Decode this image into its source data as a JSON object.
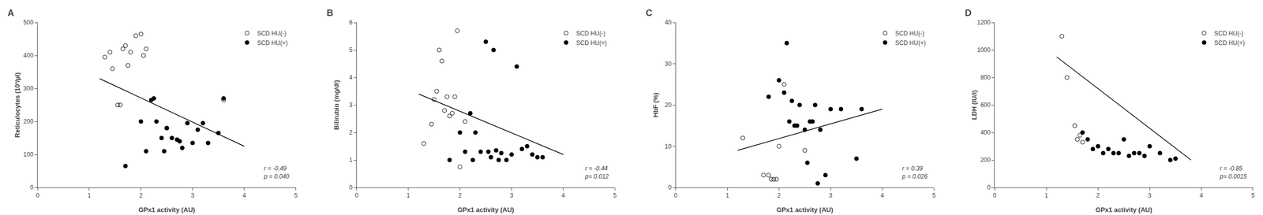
{
  "chart_data": [
    {
      "type": "scatter",
      "title": "A",
      "x_label": "GPx1 activity (AU)",
      "y_label": "Reticulocytes (10³/µl)",
      "xlim": [
        0,
        5
      ],
      "ylim": [
        0,
        500
      ],
      "xticks": [
        0,
        1,
        2,
        3,
        4,
        5
      ],
      "yticks": [
        0,
        100,
        200,
        300,
        400,
        500
      ],
      "grid": false,
      "legend": "upper right",
      "annotations": [
        "r = -0.49",
        "p = 0.040"
      ],
      "series": [
        {
          "name": "SCD HU(-)",
          "type": "scatter",
          "marker": "circle-open",
          "color": "black",
          "x": [
            1.3,
            1.4,
            1.45,
            1.55,
            1.6,
            1.65,
            1.7,
            1.75,
            1.8,
            1.9,
            2.0,
            2.05,
            2.1,
            2.5,
            3.6
          ],
          "values": [
            395,
            410,
            360,
            250,
            250,
            420,
            430,
            370,
            410,
            460,
            465,
            400,
            420,
            180,
            265
          ]
        },
        {
          "name": "SCD HU(+)",
          "type": "scatter",
          "marker": "circle",
          "color": "black",
          "x": [
            1.7,
            2.0,
            2.1,
            2.2,
            2.25,
            2.3,
            2.4,
            2.45,
            2.5,
            2.6,
            2.7,
            2.75,
            2.8,
            2.9,
            3.0,
            3.1,
            3.2,
            3.3,
            3.5,
            3.6
          ],
          "values": [
            65,
            200,
            110,
            265,
            270,
            200,
            150,
            110,
            180,
            150,
            145,
            140,
            120,
            195,
            135,
            175,
            195,
            135,
            165,
            270
          ]
        },
        {
          "type": "line",
          "color": "black",
          "x": [
            1.2,
            4.0
          ],
          "values": [
            330,
            125
          ]
        }
      ]
    },
    {
      "type": "scatter",
      "title": "B",
      "x_label": "GPx1 activity (AU)",
      "y_label": "Bilirubin (mg/dl)",
      "xlim": [
        0,
        5
      ],
      "ylim": [
        0,
        6
      ],
      "xticks": [
        0,
        1,
        2,
        3,
        4,
        5
      ],
      "yticks": [
        0,
        1,
        2,
        3,
        4,
        5,
        6
      ],
      "grid": false,
      "legend": "upper right",
      "annotations": [
        "r = -0.44",
        "p= 0.012"
      ],
      "series": [
        {
          "name": "SCD HU(-)",
          "type": "scatter",
          "marker": "circle-open",
          "color": "black",
          "x": [
            1.3,
            1.45,
            1.5,
            1.55,
            1.6,
            1.65,
            1.7,
            1.75,
            1.8,
            1.85,
            1.9,
            1.95,
            2.0,
            2.1
          ],
          "values": [
            1.6,
            2.3,
            3.2,
            3.5,
            5.0,
            4.6,
            2.8,
            3.3,
            2.6,
            2.7,
            3.3,
            5.7,
            0.75,
            2.4
          ]
        },
        {
          "name": "SCD HU(+)",
          "type": "scatter",
          "marker": "circle",
          "color": "black",
          "x": [
            1.8,
            2.0,
            2.1,
            2.2,
            2.25,
            2.3,
            2.4,
            2.5,
            2.55,
            2.6,
            2.65,
            2.7,
            2.75,
            2.8,
            2.9,
            3.0,
            3.1,
            3.2,
            3.3,
            3.4,
            3.5,
            3.6
          ],
          "values": [
            1.0,
            2.0,
            1.3,
            2.7,
            1.0,
            2.0,
            1.3,
            5.3,
            1.3,
            1.1,
            5.0,
            1.35,
            1.0,
            1.25,
            1.0,
            1.2,
            4.4,
            1.4,
            1.5,
            1.2,
            1.1,
            1.1
          ]
        },
        {
          "type": "line",
          "color": "black",
          "x": [
            1.2,
            4.0
          ],
          "values": [
            3.4,
            1.2
          ]
        }
      ]
    },
    {
      "type": "scatter",
      "title": "C",
      "x_label": "GPx1 activity (AU)",
      "y_label": "HbF (%)",
      "xlim": [
        0,
        5
      ],
      "ylim": [
        0,
        40
      ],
      "xticks": [
        0,
        1,
        2,
        3,
        4,
        5
      ],
      "yticks": [
        0,
        10,
        20,
        30,
        40
      ],
      "grid": false,
      "legend": "upper right",
      "annotations": [
        "r = 0.39",
        "p = 0.026"
      ],
      "series": [
        {
          "name": "SCD HU(-)",
          "type": "scatter",
          "marker": "circle-open",
          "color": "black",
          "x": [
            1.3,
            1.7,
            1.8,
            1.85,
            1.9,
            1.95,
            2.0,
            2.1,
            2.5
          ],
          "values": [
            12,
            3,
            3,
            2,
            2,
            2,
            10,
            25,
            9
          ]
        },
        {
          "name": "SCD HU(+)",
          "type": "scatter",
          "marker": "circle",
          "color": "black",
          "x": [
            1.8,
            2.0,
            2.1,
            2.15,
            2.2,
            2.25,
            2.3,
            2.35,
            2.4,
            2.5,
            2.55,
            2.6,
            2.65,
            2.7,
            2.75,
            2.8,
            2.9,
            3.0,
            3.2,
            3.5,
            3.6
          ],
          "values": [
            22,
            26,
            23,
            35,
            16,
            21,
            15,
            15,
            20,
            14,
            6,
            16,
            16,
            20,
            1,
            14,
            3,
            19,
            19,
            7,
            19
          ]
        },
        {
          "type": "line",
          "color": "black",
          "x": [
            1.2,
            4.0
          ],
          "values": [
            9,
            19
          ]
        }
      ]
    },
    {
      "type": "scatter",
      "title": "D",
      "x_label": "GPx1 activity (AU)",
      "y_label": "LDH (IU/l)",
      "xlim": [
        0,
        5
      ],
      "ylim": [
        0,
        1200
      ],
      "xticks": [
        0,
        1,
        2,
        3,
        4,
        5
      ],
      "yticks": [
        0,
        200,
        400,
        600,
        800,
        1000,
        1200
      ],
      "grid": false,
      "legend": "upper right",
      "annotations": [
        "r = -0.85",
        "p= 0.0015"
      ],
      "series": [
        {
          "name": "SCD HU(-)",
          "type": "scatter",
          "marker": "circle-open",
          "color": "black",
          "x": [
            1.3,
            1.4,
            1.55,
            1.6,
            1.65,
            1.7
          ],
          "values": [
            1100,
            800,
            450,
            350,
            380,
            330
          ]
        },
        {
          "name": "SCD HU(+)",
          "type": "scatter",
          "marker": "circle",
          "color": "black",
          "x": [
            1.7,
            1.8,
            1.9,
            2.0,
            2.1,
            2.2,
            2.3,
            2.4,
            2.5,
            2.6,
            2.7,
            2.8,
            2.9,
            3.0,
            3.2,
            3.4,
            3.5
          ],
          "values": [
            400,
            350,
            280,
            300,
            250,
            280,
            250,
            250,
            350,
            230,
            250,
            250,
            230,
            300,
            250,
            200,
            210
          ]
        },
        {
          "type": "line",
          "color": "black",
          "x": [
            1.2,
            3.8
          ],
          "values": [
            950,
            200
          ]
        }
      ]
    }
  ]
}
